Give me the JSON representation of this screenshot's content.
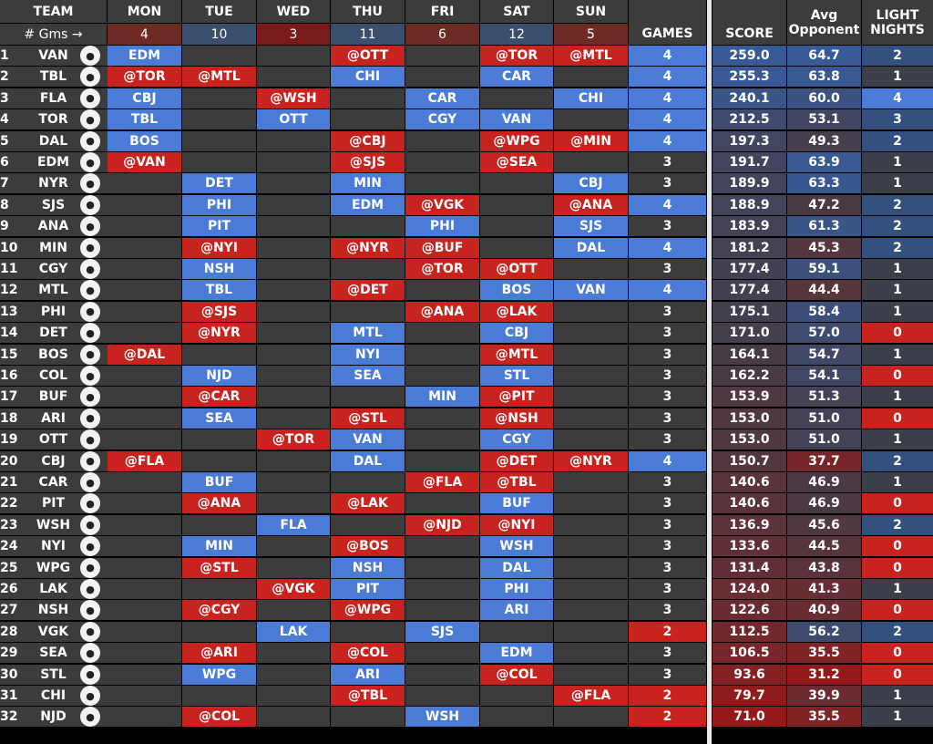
{
  "headers": {
    "team": "TEAM",
    "gms_label": "# Gms →",
    "games": "GAMES",
    "score": "SCORE",
    "avg1": "Avg",
    "avg2": "Opponent",
    "light1": "LIGHT",
    "light2": "NIGHTS",
    "days": [
      {
        "name": "MON",
        "count": "4",
        "color": "#6e2a25"
      },
      {
        "name": "TUE",
        "count": "10",
        "color": "#3a4f6e"
      },
      {
        "name": "WED",
        "count": "3",
        "color": "#7a1a1a"
      },
      {
        "name": "THU",
        "count": "11",
        "color": "#3a4f6e"
      },
      {
        "name": "FRI",
        "count": "6",
        "color": "#6e2a25"
      },
      {
        "name": "SAT",
        "count": "12",
        "color": "#3a4f6e"
      },
      {
        "name": "SUN",
        "count": "5",
        "color": "#6e2a25"
      }
    ]
  },
  "rows": [
    {
      "rank": "1",
      "team": "VAN",
      "games": [
        {
          "t": "EDM",
          "c": "b"
        },
        {
          "t": "",
          "c": ""
        },
        {
          "t": "",
          "c": ""
        },
        {
          "t": "@OTT",
          "c": "r"
        },
        {
          "t": "",
          "c": ""
        },
        {
          "t": "@TOR",
          "c": "r"
        },
        {
          "t": "@MTL",
          "c": "r"
        }
      ],
      "gcount": "4",
      "score": "259.0",
      "avg": "64.7",
      "light": "2"
    },
    {
      "rank": "2",
      "team": "TBL",
      "games": [
        {
          "t": "@TOR",
          "c": "r"
        },
        {
          "t": "@MTL",
          "c": "r"
        },
        {
          "t": "",
          "c": ""
        },
        {
          "t": "CHI",
          "c": "b"
        },
        {
          "t": "",
          "c": ""
        },
        {
          "t": "CAR",
          "c": "b"
        },
        {
          "t": "",
          "c": ""
        }
      ],
      "gcount": "4",
      "score": "255.3",
      "avg": "63.8",
      "light": "1"
    },
    {
      "rank": "3",
      "team": "FLA",
      "games": [
        {
          "t": "CBJ",
          "c": "b"
        },
        {
          "t": "",
          "c": ""
        },
        {
          "t": "@WSH",
          "c": "r"
        },
        {
          "t": "",
          "c": ""
        },
        {
          "t": "CAR",
          "c": "b"
        },
        {
          "t": "",
          "c": ""
        },
        {
          "t": "CHI",
          "c": "b"
        }
      ],
      "gcount": "4",
      "score": "240.1",
      "avg": "60.0",
      "light": "4"
    },
    {
      "rank": "4",
      "team": "TOR",
      "games": [
        {
          "t": "TBL",
          "c": "b"
        },
        {
          "t": "",
          "c": ""
        },
        {
          "t": "OTT",
          "c": "b"
        },
        {
          "t": "",
          "c": ""
        },
        {
          "t": "CGY",
          "c": "b"
        },
        {
          "t": "VAN",
          "c": "b"
        },
        {
          "t": "",
          "c": ""
        }
      ],
      "gcount": "4",
      "score": "212.5",
      "avg": "53.1",
      "light": "3"
    },
    {
      "rank": "5",
      "team": "DAL",
      "games": [
        {
          "t": "BOS",
          "c": "b"
        },
        {
          "t": "",
          "c": ""
        },
        {
          "t": "",
          "c": ""
        },
        {
          "t": "@CBJ",
          "c": "r"
        },
        {
          "t": "",
          "c": ""
        },
        {
          "t": "@WPG",
          "c": "r"
        },
        {
          "t": "@MIN",
          "c": "r"
        }
      ],
      "gcount": "4",
      "score": "197.3",
      "avg": "49.3",
      "light": "2"
    },
    {
      "rank": "6",
      "team": "EDM",
      "games": [
        {
          "t": "@VAN",
          "c": "r"
        },
        {
          "t": "",
          "c": ""
        },
        {
          "t": "",
          "c": ""
        },
        {
          "t": "@SJS",
          "c": "r"
        },
        {
          "t": "",
          "c": ""
        },
        {
          "t": "@SEA",
          "c": "r"
        },
        {
          "t": "",
          "c": ""
        }
      ],
      "gcount": "3",
      "score": "191.7",
      "avg": "63.9",
      "light": "1"
    },
    {
      "rank": "7",
      "team": "NYR",
      "games": [
        {
          "t": "",
          "c": ""
        },
        {
          "t": "DET",
          "c": "b"
        },
        {
          "t": "",
          "c": ""
        },
        {
          "t": "MIN",
          "c": "b"
        },
        {
          "t": "",
          "c": ""
        },
        {
          "t": "",
          "c": ""
        },
        {
          "t": "CBJ",
          "c": "b"
        }
      ],
      "gcount": "3",
      "score": "189.9",
      "avg": "63.3",
      "light": "1"
    },
    {
      "rank": "8",
      "team": "SJS",
      "games": [
        {
          "t": "",
          "c": ""
        },
        {
          "t": "PHI",
          "c": "b"
        },
        {
          "t": "",
          "c": ""
        },
        {
          "t": "EDM",
          "c": "b"
        },
        {
          "t": "@VGK",
          "c": "r"
        },
        {
          "t": "",
          "c": ""
        },
        {
          "t": "@ANA",
          "c": "r"
        }
      ],
      "gcount": "4",
      "score": "188.9",
      "avg": "47.2",
      "light": "2"
    },
    {
      "rank": "9",
      "team": "ANA",
      "games": [
        {
          "t": "",
          "c": ""
        },
        {
          "t": "PIT",
          "c": "b"
        },
        {
          "t": "",
          "c": ""
        },
        {
          "t": "",
          "c": ""
        },
        {
          "t": "PHI",
          "c": "b"
        },
        {
          "t": "",
          "c": ""
        },
        {
          "t": "SJS",
          "c": "b"
        }
      ],
      "gcount": "3",
      "score": "183.9",
      "avg": "61.3",
      "light": "2"
    },
    {
      "rank": "10",
      "team": "MIN",
      "games": [
        {
          "t": "",
          "c": ""
        },
        {
          "t": "@NYI",
          "c": "r"
        },
        {
          "t": "",
          "c": ""
        },
        {
          "t": "@NYR",
          "c": "r"
        },
        {
          "t": "@BUF",
          "c": "r"
        },
        {
          "t": "",
          "c": ""
        },
        {
          "t": "DAL",
          "c": "b"
        }
      ],
      "gcount": "4",
      "score": "181.2",
      "avg": "45.3",
      "light": "2"
    },
    {
      "rank": "11",
      "team": "CGY",
      "games": [
        {
          "t": "",
          "c": ""
        },
        {
          "t": "NSH",
          "c": "b"
        },
        {
          "t": "",
          "c": ""
        },
        {
          "t": "",
          "c": ""
        },
        {
          "t": "@TOR",
          "c": "r"
        },
        {
          "t": "@OTT",
          "c": "r"
        },
        {
          "t": "",
          "c": ""
        }
      ],
      "gcount": "3",
      "score": "177.4",
      "avg": "59.1",
      "light": "1"
    },
    {
      "rank": "12",
      "team": "MTL",
      "games": [
        {
          "t": "",
          "c": ""
        },
        {
          "t": "TBL",
          "c": "b"
        },
        {
          "t": "",
          "c": ""
        },
        {
          "t": "@DET",
          "c": "r"
        },
        {
          "t": "",
          "c": ""
        },
        {
          "t": "BOS",
          "c": "b"
        },
        {
          "t": "VAN",
          "c": "b"
        }
      ],
      "gcount": "4",
      "score": "177.4",
      "avg": "44.4",
      "light": "1"
    },
    {
      "rank": "13",
      "team": "PHI",
      "games": [
        {
          "t": "",
          "c": ""
        },
        {
          "t": "@SJS",
          "c": "r"
        },
        {
          "t": "",
          "c": ""
        },
        {
          "t": "",
          "c": ""
        },
        {
          "t": "@ANA",
          "c": "r"
        },
        {
          "t": "@LAK",
          "c": "r"
        },
        {
          "t": "",
          "c": ""
        }
      ],
      "gcount": "3",
      "score": "175.1",
      "avg": "58.4",
      "light": "1"
    },
    {
      "rank": "14",
      "team": "DET",
      "games": [
        {
          "t": "",
          "c": ""
        },
        {
          "t": "@NYR",
          "c": "r"
        },
        {
          "t": "",
          "c": ""
        },
        {
          "t": "MTL",
          "c": "b"
        },
        {
          "t": "",
          "c": ""
        },
        {
          "t": "CBJ",
          "c": "b"
        },
        {
          "t": "",
          "c": ""
        }
      ],
      "gcount": "3",
      "score": "171.0",
      "avg": "57.0",
      "light": "0"
    },
    {
      "rank": "15",
      "team": "BOS",
      "games": [
        {
          "t": "@DAL",
          "c": "r"
        },
        {
          "t": "",
          "c": ""
        },
        {
          "t": "",
          "c": ""
        },
        {
          "t": "NYI",
          "c": "b"
        },
        {
          "t": "",
          "c": ""
        },
        {
          "t": "@MTL",
          "c": "r"
        },
        {
          "t": "",
          "c": ""
        }
      ],
      "gcount": "3",
      "score": "164.1",
      "avg": "54.7",
      "light": "1"
    },
    {
      "rank": "16",
      "team": "COL",
      "games": [
        {
          "t": "",
          "c": ""
        },
        {
          "t": "NJD",
          "c": "b"
        },
        {
          "t": "",
          "c": ""
        },
        {
          "t": "SEA",
          "c": "b"
        },
        {
          "t": "",
          "c": ""
        },
        {
          "t": "STL",
          "c": "b"
        },
        {
          "t": "",
          "c": ""
        }
      ],
      "gcount": "3",
      "score": "162.2",
      "avg": "54.1",
      "light": "0"
    },
    {
      "rank": "17",
      "team": "BUF",
      "games": [
        {
          "t": "",
          "c": ""
        },
        {
          "t": "@CAR",
          "c": "r"
        },
        {
          "t": "",
          "c": ""
        },
        {
          "t": "",
          "c": ""
        },
        {
          "t": "MIN",
          "c": "b"
        },
        {
          "t": "@PIT",
          "c": "r"
        },
        {
          "t": "",
          "c": ""
        }
      ],
      "gcount": "3",
      "score": "153.9",
      "avg": "51.3",
      "light": "1"
    },
    {
      "rank": "18",
      "team": "ARI",
      "games": [
        {
          "t": "",
          "c": ""
        },
        {
          "t": "SEA",
          "c": "b"
        },
        {
          "t": "",
          "c": ""
        },
        {
          "t": "@STL",
          "c": "r"
        },
        {
          "t": "",
          "c": ""
        },
        {
          "t": "@NSH",
          "c": "r"
        },
        {
          "t": "",
          "c": ""
        }
      ],
      "gcount": "3",
      "score": "153.0",
      "avg": "51.0",
      "light": "0"
    },
    {
      "rank": "19",
      "team": "OTT",
      "games": [
        {
          "t": "",
          "c": ""
        },
        {
          "t": "",
          "c": ""
        },
        {
          "t": "@TOR",
          "c": "r"
        },
        {
          "t": "VAN",
          "c": "b"
        },
        {
          "t": "",
          "c": ""
        },
        {
          "t": "CGY",
          "c": "b"
        },
        {
          "t": "",
          "c": ""
        }
      ],
      "gcount": "3",
      "score": "153.0",
      "avg": "51.0",
      "light": "1"
    },
    {
      "rank": "20",
      "team": "CBJ",
      "games": [
        {
          "t": "@FLA",
          "c": "r"
        },
        {
          "t": "",
          "c": ""
        },
        {
          "t": "",
          "c": ""
        },
        {
          "t": "DAL",
          "c": "b"
        },
        {
          "t": "",
          "c": ""
        },
        {
          "t": "@DET",
          "c": "r"
        },
        {
          "t": "@NYR",
          "c": "r"
        }
      ],
      "gcount": "4",
      "score": "150.7",
      "avg": "37.7",
      "light": "2"
    },
    {
      "rank": "21",
      "team": "CAR",
      "games": [
        {
          "t": "",
          "c": ""
        },
        {
          "t": "BUF",
          "c": "b"
        },
        {
          "t": "",
          "c": ""
        },
        {
          "t": "",
          "c": ""
        },
        {
          "t": "@FLA",
          "c": "r"
        },
        {
          "t": "@TBL",
          "c": "r"
        },
        {
          "t": "",
          "c": ""
        }
      ],
      "gcount": "3",
      "score": "140.6",
      "avg": "46.9",
      "light": "1"
    },
    {
      "rank": "22",
      "team": "PIT",
      "games": [
        {
          "t": "",
          "c": ""
        },
        {
          "t": "@ANA",
          "c": "r"
        },
        {
          "t": "",
          "c": ""
        },
        {
          "t": "@LAK",
          "c": "r"
        },
        {
          "t": "",
          "c": ""
        },
        {
          "t": "BUF",
          "c": "b"
        },
        {
          "t": "",
          "c": ""
        }
      ],
      "gcount": "3",
      "score": "140.6",
      "avg": "46.9",
      "light": "0"
    },
    {
      "rank": "23",
      "team": "WSH",
      "games": [
        {
          "t": "",
          "c": ""
        },
        {
          "t": "",
          "c": ""
        },
        {
          "t": "FLA",
          "c": "b"
        },
        {
          "t": "",
          "c": ""
        },
        {
          "t": "@NJD",
          "c": "r"
        },
        {
          "t": "@NYI",
          "c": "r"
        },
        {
          "t": "",
          "c": ""
        }
      ],
      "gcount": "3",
      "score": "136.9",
      "avg": "45.6",
      "light": "2"
    },
    {
      "rank": "24",
      "team": "NYI",
      "games": [
        {
          "t": "",
          "c": ""
        },
        {
          "t": "MIN",
          "c": "b"
        },
        {
          "t": "",
          "c": ""
        },
        {
          "t": "@BOS",
          "c": "r"
        },
        {
          "t": "",
          "c": ""
        },
        {
          "t": "WSH",
          "c": "b"
        },
        {
          "t": "",
          "c": ""
        }
      ],
      "gcount": "3",
      "score": "133.6",
      "avg": "44.5",
      "light": "0"
    },
    {
      "rank": "25",
      "team": "WPG",
      "games": [
        {
          "t": "",
          "c": ""
        },
        {
          "t": "@STL",
          "c": "r"
        },
        {
          "t": "",
          "c": ""
        },
        {
          "t": "NSH",
          "c": "b"
        },
        {
          "t": "",
          "c": ""
        },
        {
          "t": "DAL",
          "c": "b"
        },
        {
          "t": "",
          "c": ""
        }
      ],
      "gcount": "3",
      "score": "131.4",
      "avg": "43.8",
      "light": "0"
    },
    {
      "rank": "26",
      "team": "LAK",
      "games": [
        {
          "t": "",
          "c": ""
        },
        {
          "t": "",
          "c": ""
        },
        {
          "t": "@VGK",
          "c": "r"
        },
        {
          "t": "PIT",
          "c": "b"
        },
        {
          "t": "",
          "c": ""
        },
        {
          "t": "PHI",
          "c": "b"
        },
        {
          "t": "",
          "c": ""
        }
      ],
      "gcount": "3",
      "score": "124.0",
      "avg": "41.3",
      "light": "1"
    },
    {
      "rank": "27",
      "team": "NSH",
      "games": [
        {
          "t": "",
          "c": ""
        },
        {
          "t": "@CGY",
          "c": "r"
        },
        {
          "t": "",
          "c": ""
        },
        {
          "t": "@WPG",
          "c": "r"
        },
        {
          "t": "",
          "c": ""
        },
        {
          "t": "ARI",
          "c": "b"
        },
        {
          "t": "",
          "c": ""
        }
      ],
      "gcount": "3",
      "score": "122.6",
      "avg": "40.9",
      "light": "0"
    },
    {
      "rank": "28",
      "team": "VGK",
      "games": [
        {
          "t": "",
          "c": ""
        },
        {
          "t": "",
          "c": ""
        },
        {
          "t": "LAK",
          "c": "b"
        },
        {
          "t": "",
          "c": ""
        },
        {
          "t": "SJS",
          "c": "b"
        },
        {
          "t": "",
          "c": ""
        },
        {
          "t": "",
          "c": ""
        }
      ],
      "gcount": "2",
      "score": "112.5",
      "avg": "56.2",
      "light": "2"
    },
    {
      "rank": "29",
      "team": "SEA",
      "games": [
        {
          "t": "",
          "c": ""
        },
        {
          "t": "@ARI",
          "c": "r"
        },
        {
          "t": "",
          "c": ""
        },
        {
          "t": "@COL",
          "c": "r"
        },
        {
          "t": "",
          "c": ""
        },
        {
          "t": "EDM",
          "c": "b"
        },
        {
          "t": "",
          "c": ""
        }
      ],
      "gcount": "3",
      "score": "106.5",
      "avg": "35.5",
      "light": "0"
    },
    {
      "rank": "30",
      "team": "STL",
      "games": [
        {
          "t": "",
          "c": ""
        },
        {
          "t": "WPG",
          "c": "b"
        },
        {
          "t": "",
          "c": ""
        },
        {
          "t": "ARI",
          "c": "b"
        },
        {
          "t": "",
          "c": ""
        },
        {
          "t": "@COL",
          "c": "r"
        },
        {
          "t": "",
          "c": ""
        }
      ],
      "gcount": "3",
      "score": "93.6",
      "avg": "31.2",
      "light": "0"
    },
    {
      "rank": "31",
      "team": "CHI",
      "games": [
        {
          "t": "",
          "c": ""
        },
        {
          "t": "",
          "c": ""
        },
        {
          "t": "",
          "c": ""
        },
        {
          "t": "@TBL",
          "c": "r"
        },
        {
          "t": "",
          "c": ""
        },
        {
          "t": "",
          "c": ""
        },
        {
          "t": "@FLA",
          "c": "r"
        }
      ],
      "gcount": "2",
      "score": "79.7",
      "avg": "39.9",
      "light": "1"
    },
    {
      "rank": "32",
      "team": "NJD",
      "games": [
        {
          "t": "",
          "c": ""
        },
        {
          "t": "@COL",
          "c": "r"
        },
        {
          "t": "",
          "c": ""
        },
        {
          "t": "",
          "c": ""
        },
        {
          "t": "WSH",
          "c": "b"
        },
        {
          "t": "",
          "c": ""
        },
        {
          "t": "",
          "c": ""
        }
      ],
      "gcount": "2",
      "score": "71.0",
      "avg": "35.5",
      "light": "1"
    }
  ]
}
